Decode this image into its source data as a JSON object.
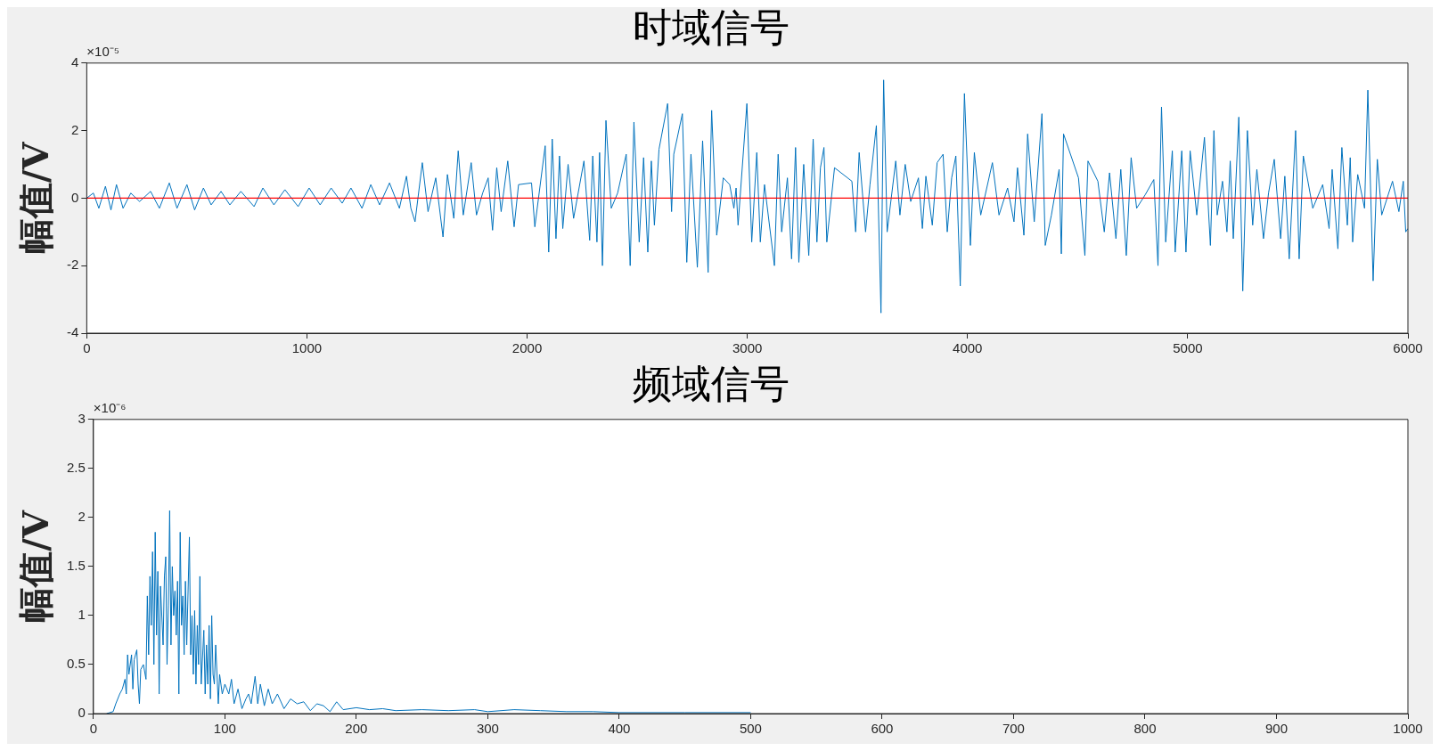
{
  "chart_data": [
    {
      "type": "line",
      "title": "时域信号",
      "ylabel": "幅值/V",
      "xlim": [
        0,
        6000
      ],
      "xticks": [
        0,
        1000,
        2000,
        3000,
        4000,
        5000,
        6000
      ],
      "ylim": [
        -4,
        4
      ],
      "yticks": [
        -4,
        -2,
        0,
        2,
        4
      ],
      "annotations": [
        "×10⁻⁵"
      ],
      "ref_lines": [
        {
          "axis": "y",
          "value": 0,
          "color": "#ff0000"
        }
      ],
      "x": [
        0,
        30,
        55,
        85,
        110,
        135,
        165,
        200,
        240,
        290,
        330,
        375,
        410,
        455,
        490,
        530,
        565,
        610,
        650,
        700,
        760,
        800,
        850,
        900,
        960,
        1010,
        1060,
        1110,
        1160,
        1200,
        1250,
        1290,
        1330,
        1375,
        1420,
        1452,
        1472,
        1491,
        1524,
        1550,
        1585,
        1618,
        1638,
        1667,
        1687,
        1710,
        1746,
        1770,
        1798,
        1823,
        1843,
        1862,
        1882,
        1912,
        1941,
        1961,
        2020,
        2035,
        2082,
        2098,
        2114,
        2131,
        2147,
        2162,
        2186,
        2211,
        2258,
        2284,
        2298,
        2317,
        2329,
        2342,
        2358,
        2382,
        2411,
        2450,
        2468,
        2485,
        2509,
        2529,
        2548,
        2564,
        2578,
        2599,
        2638,
        2656,
        2666,
        2705,
        2725,
        2744,
        2773,
        2797,
        2822,
        2838,
        2861,
        2891,
        2920,
        2939,
        2949,
        2958,
        2998,
        3020,
        3043,
        3059,
        3078,
        3123,
        3140,
        3156,
        3182,
        3201,
        3219,
        3234,
        3256,
        3279,
        3299,
        3316,
        3332,
        3348,
        3361,
        3396,
        3475,
        3492,
        3508,
        3537,
        3557,
        3586,
        3607,
        3619,
        3635,
        3674,
        3693,
        3717,
        3742,
        3777,
        3795,
        3811,
        3840,
        3862,
        3889,
        3908,
        3928,
        3947,
        3967,
        3986,
        4013,
        4031,
        4060,
        4113,
        4143,
        4182,
        4211,
        4227,
        4256,
        4273,
        4303,
        4338,
        4353,
        4381,
        4416,
        4426,
        4436,
        4504,
        4533,
        4547,
        4592,
        4621,
        4645,
        4674,
        4696,
        4721,
        4743,
        4768,
        4807,
        4846,
        4865,
        4881,
        4900,
        4930,
        4943,
        4973,
        4992,
        5011,
        5041,
        5076,
        5103,
        5119,
        5134,
        5158,
        5178,
        5193,
        5207,
        5232,
        5250,
        5271,
        5295,
        5314,
        5344,
        5367,
        5393,
        5422,
        5441,
        5461,
        5490,
        5506,
        5525,
        5568,
        5613,
        5642,
        5656,
        5682,
        5700,
        5725,
        5738,
        5749,
        5772,
        5803,
        5818,
        5842,
        5861,
        5881,
        5930,
        5959,
        5979,
        5990,
        6000
      ],
      "series": [
        {
          "color": "#0072bd",
          "values": [
            0,
            0.15,
            -0.3,
            0.35,
            -0.35,
            0.4,
            -0.3,
            0.15,
            -0.1,
            0.2,
            -0.3,
            0.45,
            -0.3,
            0.4,
            -0.35,
            0.3,
            -0.2,
            0.2,
            -0.2,
            0.2,
            -0.25,
            0.3,
            -0.2,
            0.25,
            -0.25,
            0.3,
            -0.2,
            0.3,
            -0.15,
            0.3,
            -0.3,
            0.4,
            -0.2,
            0.45,
            -0.3,
            0.65,
            -0.3,
            -0.7,
            1.05,
            -0.4,
            0.6,
            -1.15,
            0.7,
            -0.6,
            1.4,
            -0.5,
            1.05,
            -0.5,
            0.15,
            0.6,
            -0.95,
            0.9,
            -0.4,
            1.1,
            -0.85,
            0.4,
            0.45,
            -0.85,
            1.55,
            -1.6,
            1.75,
            -1.2,
            1.25,
            -0.9,
            1.0,
            -0.6,
            1.1,
            -1.25,
            1.25,
            -1.3,
            1.35,
            -2.0,
            2.3,
            -0.3,
            0.15,
            1.3,
            -2.0,
            2.25,
            -1.3,
            1.2,
            -1.6,
            1.1,
            -0.8,
            1.45,
            2.8,
            -0.4,
            1.3,
            2.5,
            -1.9,
            1.3,
            -2.05,
            1.7,
            -2.2,
            2.6,
            -1.1,
            0.6,
            0.4,
            -0.3,
            0.3,
            -0.8,
            2.8,
            -1.3,
            1.35,
            -1.3,
            0.4,
            -2.0,
            1.3,
            -1.0,
            0.6,
            -1.8,
            1.5,
            -1.9,
            1.0,
            -1.7,
            1.75,
            -1.3,
            0.9,
            1.5,
            -1.3,
            0.9,
            0.5,
            -1.0,
            1.35,
            -1.0,
            0.4,
            2.15,
            -3.4,
            3.5,
            -1.0,
            1.1,
            -0.5,
            1.0,
            -0.1,
            0.6,
            -0.9,
            0.65,
            -0.8,
            1.05,
            1.3,
            -1.0,
            0.6,
            1.25,
            -2.6,
            3.1,
            -1.4,
            1.35,
            -0.5,
            1.05,
            -0.5,
            0.3,
            -0.7,
            0.9,
            -1.1,
            1.9,
            -0.7,
            2.5,
            -1.4,
            -0.5,
            0.85,
            -1.65,
            1.9,
            0.6,
            -1.7,
            1.1,
            0.5,
            -1.0,
            0.75,
            -1.2,
            0.85,
            -1.7,
            1.2,
            -0.3,
            0.1,
            0.55,
            -2.0,
            2.7,
            -1.3,
            1.4,
            -1.6,
            1.4,
            -1.6,
            1.4,
            -0.5,
            1.8,
            -1.4,
            2.0,
            -0.5,
            0.5,
            -1.0,
            1.1,
            -1.2,
            2.4,
            -2.75,
            2.0,
            -0.8,
            0.85,
            -1.2,
            0.15,
            1.15,
            -1.2,
            0.65,
            -1.8,
            2.0,
            -1.8,
            1.25,
            -0.3,
            0.4,
            -0.9,
            0.85,
            -1.5,
            1.5,
            -0.8,
            1.2,
            -1.3,
            0.7,
            -0.3,
            3.2,
            -2.45,
            1.15,
            -0.5,
            0.5,
            -0.4,
            0.5,
            -1.0,
            -0.9
          ]
        }
      ]
    },
    {
      "type": "line",
      "title": "频域信号",
      "ylabel": "幅值/V",
      "xlim": [
        0,
        1000
      ],
      "xticks": [
        0,
        100,
        200,
        300,
        400,
        500,
        600,
        700,
        800,
        900,
        1000
      ],
      "ylim": [
        0,
        3
      ],
      "yticks": [
        0,
        0.5,
        1,
        1.5,
        2,
        2.5,
        3
      ],
      "annotations": [
        "×10⁻⁶"
      ],
      "x": [
        10,
        15,
        17,
        20,
        22,
        24,
        25,
        26,
        27,
        29,
        30,
        31,
        33,
        34,
        35,
        36,
        38,
        40,
        41,
        42,
        43,
        44,
        45,
        46,
        47,
        48,
        49,
        50,
        51,
        53,
        54,
        55,
        56,
        57,
        58,
        59,
        60,
        61,
        62,
        63,
        64,
        65,
        66,
        67,
        68,
        69,
        70,
        71,
        73,
        74,
        75,
        76,
        77,
        78,
        79,
        80,
        81,
        82,
        84,
        85,
        86,
        87,
        88,
        89,
        90,
        91,
        92,
        93,
        95,
        96,
        98,
        100,
        103,
        105,
        107,
        110,
        113,
        116,
        118,
        120,
        123,
        125,
        127,
        130,
        133,
        136,
        140,
        145,
        150,
        155,
        160,
        165,
        170,
        175,
        180,
        185,
        190,
        200,
        210,
        220,
        230,
        250,
        270,
        290,
        300,
        320,
        340,
        360,
        380,
        400,
        450,
        500
      ],
      "series": [
        {
          "color": "#0072bd",
          "values": [
            0,
            0.02,
            0.1,
            0.2,
            0.25,
            0.35,
            0.2,
            0.6,
            0.4,
            0.6,
            0.25,
            0.55,
            0.65,
            0.3,
            0.1,
            0.45,
            0.5,
            0.35,
            1.2,
            0.6,
            1.4,
            0.9,
            1.65,
            0.5,
            1.85,
            0.8,
            1.45,
            0.2,
            1.3,
            0.7,
            1.4,
            1.6,
            0.5,
            1.1,
            2.07,
            0.7,
            1.5,
            1.0,
            1.25,
            0.8,
            1.35,
            0.2,
            1.85,
            0.9,
            1.2,
            0.6,
            1.35,
            0.7,
            1.8,
            0.6,
            1.0,
            0.4,
            1.05,
            0.3,
            0.9,
            0.5,
            1.4,
            0.3,
            0.85,
            0.2,
            0.7,
            0.3,
            0.9,
            0.15,
            1.0,
            0.4,
            0.3,
            0.7,
            0.1,
            0.4,
            0.2,
            0.3,
            0.2,
            0.35,
            0.1,
            0.25,
            0.05,
            0.15,
            0.2,
            0.1,
            0.38,
            0.1,
            0.3,
            0.08,
            0.25,
            0.1,
            0.2,
            0.05,
            0.15,
            0.1,
            0.12,
            0.03,
            0.1,
            0.08,
            0.02,
            0.12,
            0.04,
            0.06,
            0.04,
            0.05,
            0.03,
            0.04,
            0.03,
            0.04,
            0.02,
            0.04,
            0.03,
            0.02,
            0.02,
            0.01,
            0.01,
            0.01
          ]
        }
      ]
    }
  ]
}
